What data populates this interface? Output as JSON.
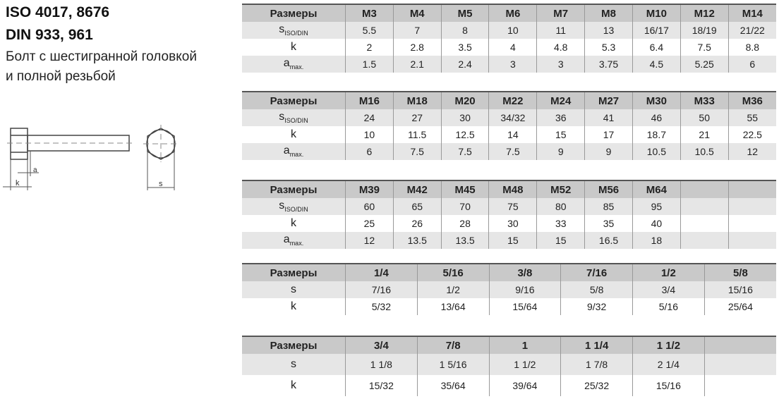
{
  "header": {
    "line1": "ISO 4017, 8676",
    "line2": "DIN 933, 961",
    "line3": "Болт с шестигранной головкой",
    "line4": "и полной резьбой"
  },
  "drawing": {
    "labels": [
      "a",
      "k",
      "s"
    ]
  },
  "tables": [
    {
      "header": [
        "Размеры",
        "M3",
        "M4",
        "M5",
        "M6",
        "M7",
        "M8",
        "M10",
        "M12",
        "M14"
      ],
      "rows": [
        {
          "label": "s",
          "sub": "ISO/DIN",
          "values": [
            "5.5",
            "7",
            "8",
            "10",
            "11",
            "13",
            "16/17",
            "18/19",
            "21/22"
          ]
        },
        {
          "label": "k",
          "sub": "",
          "values": [
            "2",
            "2.8",
            "3.5",
            "4",
            "4.8",
            "5.3",
            "6.4",
            "7.5",
            "8.8"
          ]
        },
        {
          "label": "a",
          "sub": "max.",
          "values": [
            "1.5",
            "2.1",
            "2.4",
            "3",
            "3",
            "3.75",
            "4.5",
            "5.25",
            "6"
          ]
        }
      ]
    },
    {
      "header": [
        "Размеры",
        "M16",
        "M18",
        "M20",
        "M22",
        "M24",
        "M27",
        "M30",
        "M33",
        "M36"
      ],
      "rows": [
        {
          "label": "s",
          "sub": "ISO/DIN",
          "values": [
            "24",
            "27",
            "30",
            "34/32",
            "36",
            "41",
            "46",
            "50",
            "55"
          ]
        },
        {
          "label": "k",
          "sub": "",
          "values": [
            "10",
            "11.5",
            "12.5",
            "14",
            "15",
            "17",
            "18.7",
            "21",
            "22.5"
          ]
        },
        {
          "label": "a",
          "sub": "max.",
          "values": [
            "6",
            "7.5",
            "7.5",
            "7.5",
            "9",
            "9",
            "10.5",
            "10.5",
            "12"
          ]
        }
      ]
    },
    {
      "header": [
        "Размеры",
        "M39",
        "M42",
        "M45",
        "M48",
        "M52",
        "M56",
        "M64",
        "",
        ""
      ],
      "rows": [
        {
          "label": "s",
          "sub": "ISO/DIN",
          "values": [
            "60",
            "65",
            "70",
            "75",
            "80",
            "85",
            "95",
            "",
            ""
          ]
        },
        {
          "label": "k",
          "sub": "",
          "values": [
            "25",
            "26",
            "28",
            "30",
            "33",
            "35",
            "40",
            "",
            ""
          ]
        },
        {
          "label": "a",
          "sub": "max.",
          "values": [
            "12",
            "13.5",
            "13.5",
            "15",
            "15",
            "16.5",
            "18",
            "",
            ""
          ]
        }
      ]
    },
    {
      "header": [
        "Размеры",
        "1/4",
        "5/16",
        "3/8",
        "7/16",
        "1/2",
        "5/8"
      ],
      "rows": [
        {
          "label": "s",
          "sub": "",
          "values": [
            "7/16",
            "1/2",
            "9/16",
            "5/8",
            "3/4",
            "15/16"
          ]
        },
        {
          "label": "k",
          "sub": "",
          "values": [
            "5/32",
            "13/64",
            "15/64",
            "9/32",
            "5/16",
            "25/64"
          ]
        }
      ]
    },
    {
      "header": [
        "Размеры",
        "3/4",
        "7/8",
        "1",
        "1 1/4",
        "1 1/2",
        ""
      ],
      "rows": [
        {
          "label": "s",
          "sub": "",
          "values": [
            "1 1/8",
            "1 5/16",
            "1 1/2",
            "1 7/8",
            "2 1/4",
            ""
          ]
        },
        {
          "label": "k",
          "sub": "",
          "values": [
            "15/32",
            "35/64",
            "39/64",
            "25/32",
            "15/16",
            ""
          ]
        }
      ]
    }
  ]
}
